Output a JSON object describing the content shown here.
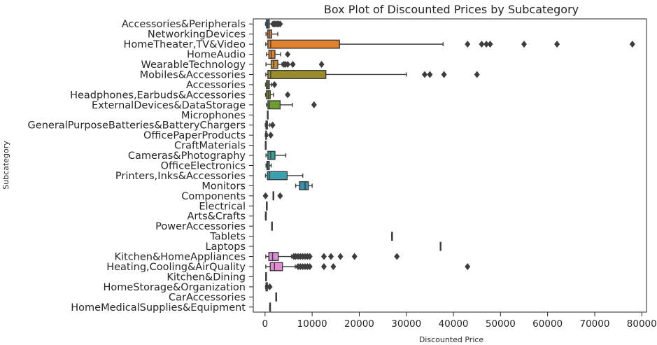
{
  "chart_data": {
    "type": "box",
    "title": "Box Plot of Discounted Prices by Subcategory",
    "xlabel": "Discounted Price",
    "ylabel": "Subcategory",
    "xlim": [
      -2500,
      81000
    ],
    "xticks": [
      0,
      10000,
      20000,
      30000,
      40000,
      50000,
      60000,
      70000,
      80000
    ],
    "grid": false,
    "categories": [
      "Accessories&Peripherals",
      "NetworkingDevices",
      "HomeTheater,TV&Video",
      "HomeAudio",
      "WearableTechnology",
      "Mobiles&Accessories",
      "Accessories",
      "Headphones,Earbuds&Accessories",
      "ExternalDevices&DataStorage",
      "Microphones",
      "GeneralPurposeBatteries&BatteryChargers",
      "OfficePaperProducts",
      "CraftMaterials",
      "Cameras&Photography",
      "OfficeElectronics",
      "Printers,Inks&Accessories",
      "Monitors",
      "Components",
      "Electrical",
      "Arts&Crafts",
      "PowerAccessories",
      "Tablets",
      "Laptops",
      "Kitchen&HomeAppliances",
      "Heating,Cooling&AirQuality",
      "Kitchen&Dining",
      "HomeStorage&Organization",
      "CarAccessories",
      "HomeMedicalSupplies&Equipment"
    ],
    "boxes": [
      {
        "min": 100,
        "q1": 300,
        "median": 550,
        "q3": 900,
        "max": 1500,
        "outliers": [
          1700,
          2000,
          2300,
          2600,
          2900,
          3200
        ],
        "color": "#3274a1"
      },
      {
        "min": 200,
        "q1": 550,
        "median": 900,
        "q3": 1400,
        "max": 2700,
        "outliers": [],
        "color": "#e1812c"
      },
      {
        "min": 150,
        "q1": 600,
        "median": 1200,
        "q3": 15800,
        "max": 37800,
        "outliers": [
          43000,
          46000,
          47000,
          47800,
          55000,
          62000,
          78000
        ],
        "color": "#e1812c"
      },
      {
        "min": 300,
        "q1": 800,
        "median": 1300,
        "q3": 2100,
        "max": 3300,
        "outliers": [
          4800
        ],
        "color": "#e1812c"
      },
      {
        "min": 200,
        "q1": 1300,
        "median": 1800,
        "q3": 2700,
        "max": 3600,
        "outliers": [
          4000,
          4300,
          4800,
          5900,
          12000
        ],
        "color": "#c48a2e"
      },
      {
        "min": 150,
        "q1": 600,
        "median": 1200,
        "q3": 12900,
        "max": 30000,
        "outliers": [
          33900,
          35000,
          38000,
          45000
        ],
        "color": "#9a8b2c"
      },
      {
        "min": 100,
        "q1": 300,
        "median": 600,
        "q3": 900,
        "max": 1400,
        "outliers": [
          2000
        ],
        "color": "#8a9a2c"
      },
      {
        "min": 100,
        "q1": 300,
        "median": 700,
        "q3": 1100,
        "max": 1800,
        "outliers": [
          4800
        ],
        "color": "#7a9c2c"
      },
      {
        "min": 300,
        "q1": 600,
        "median": 900,
        "q3": 3200,
        "max": 5800,
        "outliers": [
          10400
        ],
        "color": "#6a9f2d"
      },
      {
        "min": 500,
        "q1": 500,
        "median": 500,
        "q3": 500,
        "max": 500,
        "outliers": [],
        "color": "#4fa13a"
      },
      {
        "min": 50,
        "q1": 200,
        "median": 350,
        "q3": 500,
        "max": 1000,
        "outliers": [
          1600
        ],
        "color": "#39a363"
      },
      {
        "min": 50,
        "q1": 150,
        "median": 200,
        "q3": 300,
        "max": 500,
        "outliers": [
          1200
        ],
        "color": "#38a07a"
      },
      {
        "min": 80,
        "q1": 80,
        "median": 80,
        "q3": 80,
        "max": 80,
        "outliers": [],
        "color": "#37a08a"
      },
      {
        "min": 200,
        "q1": 600,
        "median": 1200,
        "q3": 2100,
        "max": 4400,
        "outliers": [],
        "color": "#369e9a"
      },
      {
        "min": 200,
        "q1": 400,
        "median": 600,
        "q3": 900,
        "max": 1300,
        "outliers": [],
        "color": "#34a0a6"
      },
      {
        "min": 100,
        "q1": 500,
        "median": 900,
        "q3": 4700,
        "max": 8000,
        "outliers": [],
        "color": "#36a2b0"
      },
      {
        "min": 6500,
        "q1": 7300,
        "median": 8500,
        "q3": 9200,
        "max": 10000,
        "outliers": [],
        "color": "#3a8fa8"
      },
      {
        "min": 1700,
        "q1": 1700,
        "median": 1700,
        "q3": 1700,
        "max": 1700,
        "outliers": [
          100,
          3200
        ],
        "color": "#3a8fbb"
      },
      {
        "min": 300,
        "q1": 300,
        "median": 300,
        "q3": 300,
        "max": 300,
        "outliers": [],
        "color": "#5b8fd4"
      },
      {
        "min": 100,
        "q1": 100,
        "median": 100,
        "q3": 100,
        "max": 100,
        "outliers": [],
        "color": "#7b8fd8"
      },
      {
        "min": 1400,
        "q1": 1400,
        "median": 1400,
        "q3": 1400,
        "max": 1400,
        "outliers": [],
        "color": "#9a8fdb"
      },
      {
        "min": 26900,
        "q1": 26900,
        "median": 26900,
        "q3": 26900,
        "max": 26900,
        "outliers": [],
        "color": "#b08ed9"
      },
      {
        "min": 37200,
        "q1": 37200,
        "median": 37200,
        "q3": 37200,
        "max": 37200,
        "outliers": [],
        "color": "#c48dd8"
      },
      {
        "min": 150,
        "q1": 800,
        "median": 1600,
        "q3": 2800,
        "max": 5600,
        "outliers": [
          6100,
          6500,
          7000,
          7500,
          8000,
          8500,
          9000,
          9500,
          12500,
          14000,
          16000,
          19000,
          28000
        ],
        "color": "#d88dd6"
      },
      {
        "min": 150,
        "q1": 1100,
        "median": 2000,
        "q3": 3700,
        "max": 6400,
        "outliers": [
          7000,
          7500,
          8000,
          8500,
          9000,
          9500,
          12500,
          14500,
          43000
        ],
        "color": "#e58bd1"
      },
      {
        "min": 150,
        "q1": 150,
        "median": 150,
        "q3": 150,
        "max": 150,
        "outliers": [],
        "color": "#e889c4"
      },
      {
        "min": 100,
        "q1": 200,
        "median": 300,
        "q3": 500,
        "max": 700,
        "outliers": [
          1000
        ],
        "color": "#ea88b8"
      },
      {
        "min": 2300,
        "q1": 2300,
        "median": 2300,
        "q3": 2300,
        "max": 2300,
        "outliers": [],
        "color": "#ec87ac"
      },
      {
        "min": 1000,
        "q1": 1000,
        "median": 1000,
        "q3": 1000,
        "max": 1000,
        "outliers": [],
        "color": "#ee86a0"
      }
    ]
  }
}
